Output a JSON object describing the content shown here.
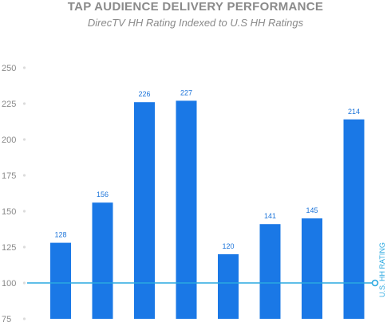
{
  "chart_data": {
    "type": "bar",
    "title": "TAP AUDIENCE DELIVERY PERFORMANCE",
    "subtitle": "DirecTV HH Rating Indexed to U.S HH Ratings",
    "categories": [
      "",
      "",
      "",
      "",
      "",
      "",
      "",
      ""
    ],
    "values": [
      128,
      156,
      226,
      227,
      120,
      141,
      145,
      214
    ],
    "value_labels": [
      "128",
      "156",
      "226",
      "227",
      "120",
      "141",
      "145",
      "214"
    ],
    "ylim": [
      75,
      250
    ],
    "yticks": [
      75,
      100,
      125,
      150,
      175,
      200,
      225,
      250
    ],
    "ytick_labels": [
      "75",
      "100",
      "125",
      "150",
      "175",
      "200",
      "225",
      "250"
    ],
    "reference_line": {
      "value": 100,
      "label": "U.S. HH RATING"
    },
    "grid": false,
    "bar_color": "#1a78e6",
    "label_color": "#1a73d9",
    "reference_color": "#29a8e0",
    "axis_text_color": "#8a8a8a"
  }
}
